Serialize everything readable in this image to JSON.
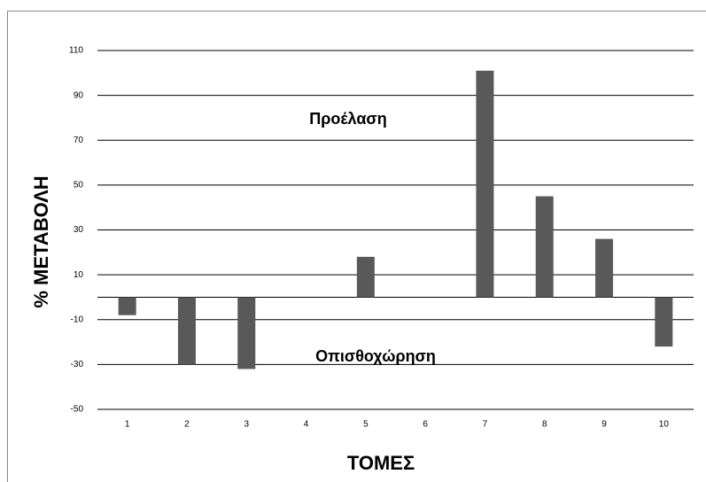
{
  "chart_data": {
    "type": "bar",
    "x_label": "ΤΟΜΕΣ",
    "y_label": "% ΜΕΤΑΒΟΛΗ",
    "annotations": [
      "Προέλαση",
      "Οπισθοχώρηση"
    ],
    "categories": [
      "1",
      "2",
      "3",
      "4",
      "5",
      "6",
      "7",
      "8",
      "9",
      "10"
    ],
    "values": [
      -8,
      -30,
      -32,
      0,
      18,
      0,
      101,
      45,
      26,
      -22
    ],
    "color": "#595959",
    "ylim": [
      -50,
      110
    ],
    "yticks": [
      110,
      90,
      70,
      50,
      30,
      10,
      -10,
      -30,
      -50
    ],
    "grid": true
  }
}
